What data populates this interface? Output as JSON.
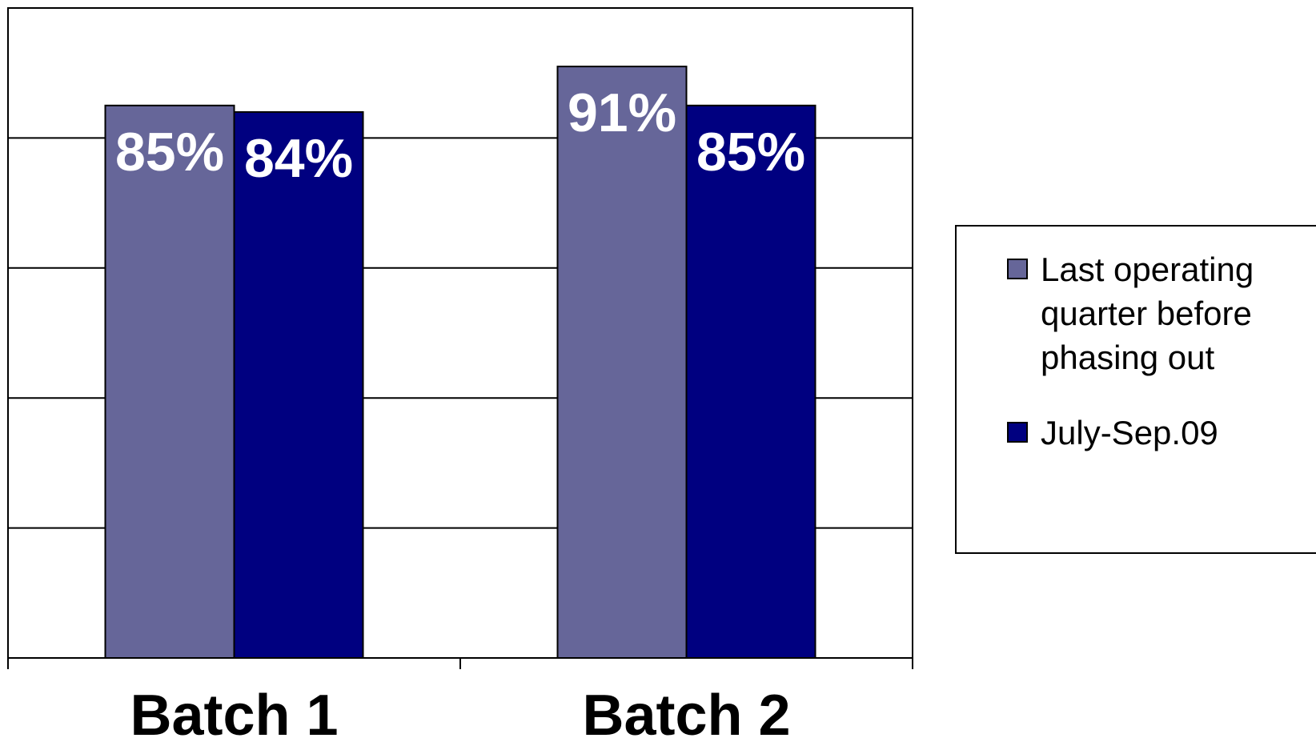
{
  "chart_data": {
    "type": "bar",
    "categories": [
      "Batch 1",
      "Batch 2"
    ],
    "series": [
      {
        "name": "Last operating quarter before phasing out",
        "values": [
          85,
          91
        ],
        "labels": [
          "85%",
          "91%"
        ],
        "color": "#666699"
      },
      {
        "name": "July-Sep.09",
        "values": [
          84,
          85
        ],
        "labels": [
          "84%",
          "85%"
        ],
        "color": "#000080"
      }
    ],
    "ylim": [
      0,
      100
    ],
    "grid": true,
    "legend_position": "right",
    "title": "",
    "xlabel": "",
    "ylabel": ""
  },
  "legend": {
    "items": [
      {
        "label": "Last operating quarter before phasing out",
        "color": "#666699"
      },
      {
        "label": "July-Sep.09",
        "color": "#000080"
      }
    ]
  }
}
